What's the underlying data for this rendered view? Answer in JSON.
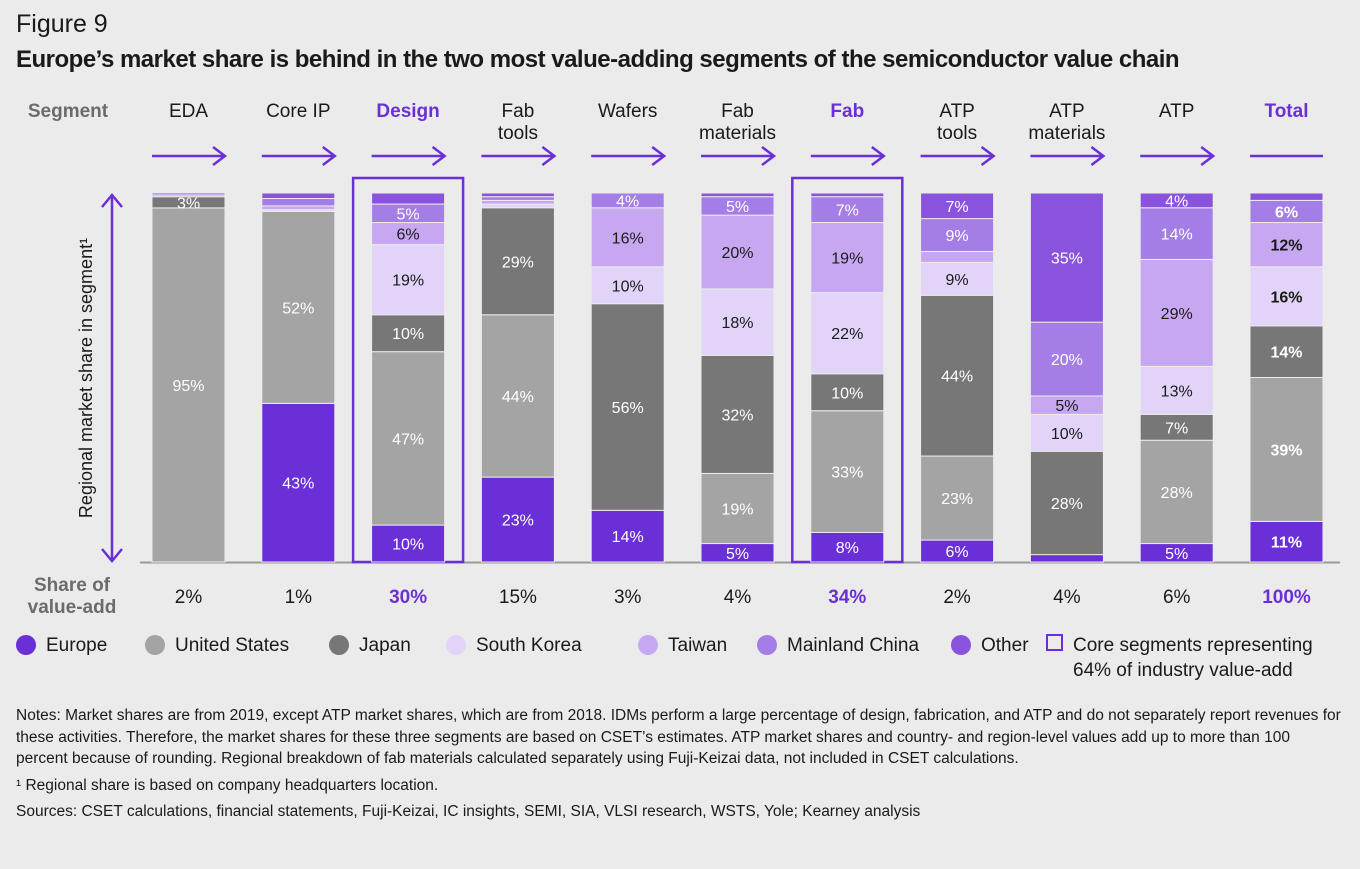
{
  "figure_label": "Figure 9",
  "title": "Europe’s market share is behind in the two most value-adding segments of the semiconductor value chain",
  "segment_header": "Segment",
  "share_header": [
    "Share of",
    "value-add"
  ],
  "y_axis_label": "Regional market share in segment¹",
  "colors": {
    "Europe": "#6a2fd6",
    "United States": "#a4a4a4",
    "Japan": "#777777",
    "South Korea": "#e2d4f8",
    "Taiwan": "#c7a8f0",
    "Mainland China": "#a47de6",
    "Other": "#8a53dd",
    "accent": "#6a2fd6"
  },
  "legend": {
    "items": [
      "Europe",
      "United States",
      "Japan",
      "South Korea",
      "Taiwan",
      "Mainland China",
      "Other"
    ],
    "core_box_label": [
      "Core segments representing",
      "64% of industry value-add"
    ]
  },
  "chart_data": {
    "type": "bar",
    "stacked": true,
    "series_order": [
      "Europe",
      "United States",
      "Japan",
      "South Korea",
      "Taiwan",
      "Mainland China",
      "Other"
    ],
    "ylim": [
      0,
      100
    ],
    "categories": [
      {
        "label": [
          "EDA"
        ],
        "share": "2%",
        "highlight": false,
        "core": false,
        "values": {
          "Europe": 0,
          "United States": 95,
          "Japan": 3,
          "South Korea": 0,
          "Taiwan": 0.5,
          "Mainland China": 0,
          "Other": 0.5
        },
        "labels": {
          "United States": "95%",
          "Japan": "3%"
        }
      },
      {
        "label": [
          "Core IP"
        ],
        "share": "1%",
        "highlight": false,
        "core": false,
        "values": {
          "Europe": 43,
          "United States": 52,
          "Japan": 0,
          "South Korea": 0.5,
          "Taiwan": 1,
          "Mainland China": 2,
          "Other": 1.5
        },
        "labels": {
          "Europe": "43%",
          "United States": "52%"
        }
      },
      {
        "label": [
          "Design"
        ],
        "share": "30%",
        "highlight": true,
        "core": true,
        "values": {
          "Europe": 10,
          "United States": 47,
          "Japan": 10,
          "South Korea": 19,
          "Taiwan": 6,
          "Mainland China": 5,
          "Other": 3
        },
        "labels": {
          "Europe": "10%",
          "United States": "47%",
          "Japan": "10%",
          "South Korea": "19%",
          "Taiwan": "6%",
          "Mainland China": "5%"
        }
      },
      {
        "label": [
          "Fab",
          "tools"
        ],
        "share": "15%",
        "highlight": false,
        "core": false,
        "values": {
          "Europe": 23,
          "United States": 44,
          "Japan": 29,
          "South Korea": 1,
          "Taiwan": 1,
          "Mainland China": 1,
          "Other": 1
        },
        "labels": {
          "Europe": "23%",
          "United States": "44%",
          "Japan": "29%"
        }
      },
      {
        "label": [
          "Wafers"
        ],
        "share": "3%",
        "highlight": false,
        "core": false,
        "values": {
          "Europe": 14,
          "United States": 0,
          "Japan": 56,
          "South Korea": 10,
          "Taiwan": 16,
          "Mainland China": 4,
          "Other": 0
        },
        "labels": {
          "Europe": "14%",
          "Japan": "56%",
          "South Korea": "10%",
          "Taiwan": "16%",
          "Mainland China": "4%"
        }
      },
      {
        "label": [
          "Fab",
          "materials"
        ],
        "share": "4%",
        "highlight": false,
        "core": false,
        "values": {
          "Europe": 5,
          "United States": 19,
          "Japan": 32,
          "South Korea": 18,
          "Taiwan": 20,
          "Mainland China": 5,
          "Other": 1
        },
        "labels": {
          "Europe": "5%",
          "United States": "19%",
          "Japan": "32%",
          "South Korea": "18%",
          "Taiwan": "20%",
          "Mainland China": "5%"
        }
      },
      {
        "label": [
          "Fab"
        ],
        "share": "34%",
        "highlight": true,
        "core": true,
        "values": {
          "Europe": 8,
          "United States": 33,
          "Japan": 10,
          "South Korea": 22,
          "Taiwan": 19,
          "Mainland China": 7,
          "Other": 1
        },
        "labels": {
          "Europe": "8%",
          "United States": "33%",
          "Japan": "10%",
          "South Korea": "22%",
          "Taiwan": "19%",
          "Mainland China": "7%"
        }
      },
      {
        "label": [
          "ATP",
          "tools"
        ],
        "share": "2%",
        "highlight": false,
        "core": false,
        "values": {
          "Europe": 6,
          "United States": 23,
          "Japan": 44,
          "South Korea": 9,
          "Taiwan": 3,
          "Mainland China": 9,
          "Other": 7
        },
        "labels": {
          "Europe": "6%",
          "United States": "23%",
          "Japan": "44%",
          "South Korea": "9%",
          "Mainland China": "9%",
          "Other": "7%"
        }
      },
      {
        "label": [
          "ATP",
          "materials"
        ],
        "share": "4%",
        "highlight": false,
        "core": false,
        "values": {
          "Europe": 2,
          "United States": 0,
          "Japan": 28,
          "South Korea": 10,
          "Taiwan": 5,
          "Mainland China": 20,
          "Other": 35
        },
        "labels": {
          "Japan": "28%",
          "South Korea": "10%",
          "Taiwan": "5%",
          "Mainland China": "20%",
          "Other": "35%"
        }
      },
      {
        "label": [
          "ATP"
        ],
        "share": "6%",
        "highlight": false,
        "core": false,
        "values": {
          "Europe": 5,
          "United States": 28,
          "Japan": 7,
          "South Korea": 13,
          "Taiwan": 29,
          "Mainland China": 14,
          "Other": 4
        },
        "labels": {
          "Europe": "5%",
          "United States": "28%",
          "Japan": "7%",
          "South Korea": "13%",
          "Taiwan": "29%",
          "Mainland China": "14%",
          "Other": "4%"
        }
      },
      {
        "label": [
          "Total"
        ],
        "share": "100%",
        "highlight": true,
        "core": false,
        "bold_labels": true,
        "values": {
          "Europe": 11,
          "United States": 39,
          "Japan": 14,
          "South Korea": 16,
          "Taiwan": 12,
          "Mainland China": 6,
          "Other": 2
        },
        "labels": {
          "Europe": "11%",
          "United States": "39%",
          "Japan": "14%",
          "South Korea": "16%",
          "Taiwan": "12%",
          "Mainland China": "6%"
        }
      }
    ]
  },
  "notes": {
    "main": "Notes: Market shares are from 2019, except ATP market shares, which are from 2018. IDMs perform a large percentage of design, fabrication, and ATP and do not separately report revenues for these activities. Therefore, the market shares for these three segments are based on CSET’s estimates. ATP market shares and country- and region-level values add up to more than 100 percent because of rounding. Regional breakdown of fab materials calculated separately using Fuji-Keizai data, not included in CSET calculations.",
    "footnote": "¹ Regional share is based on company headquarters location.",
    "sources": "Sources: CSET calculations, financial statements, Fuji-Keizai, IC insights, SEMI, SIA, VLSI research, WSTS, Yole; Kearney analysis"
  }
}
